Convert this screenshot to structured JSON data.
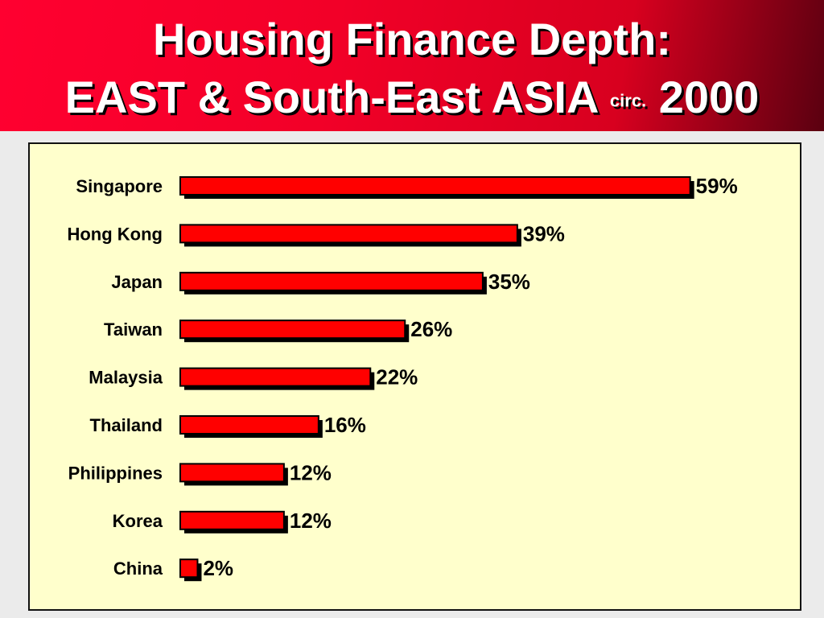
{
  "header": {
    "title_line1": "Housing Finance Depth:",
    "title_line2_main": "EAST & South-East ASIA",
    "title_line2_small": "circ.",
    "title_line2_year": "2000",
    "color_top": "#ff0030",
    "color_edge": "#5a0010"
  },
  "chart_data": {
    "type": "bar",
    "orientation": "horizontal",
    "categories": [
      "Singapore",
      "Hong Kong",
      "Japan",
      "Taiwan",
      "Malaysia",
      "Thailand",
      "Philippines",
      "Korea",
      "China"
    ],
    "values": [
      59,
      39,
      35,
      26,
      22,
      16,
      12,
      12,
      2
    ],
    "value_labels": [
      "59%",
      "39%",
      "35%",
      "26%",
      "22%",
      "16%",
      "12%",
      "12%",
      "2%"
    ],
    "unit": "%",
    "bar_color": "#ff0000",
    "shadow_color": "#000000",
    "panel_color": "#ffffcc",
    "grid": false,
    "legend": "none"
  }
}
